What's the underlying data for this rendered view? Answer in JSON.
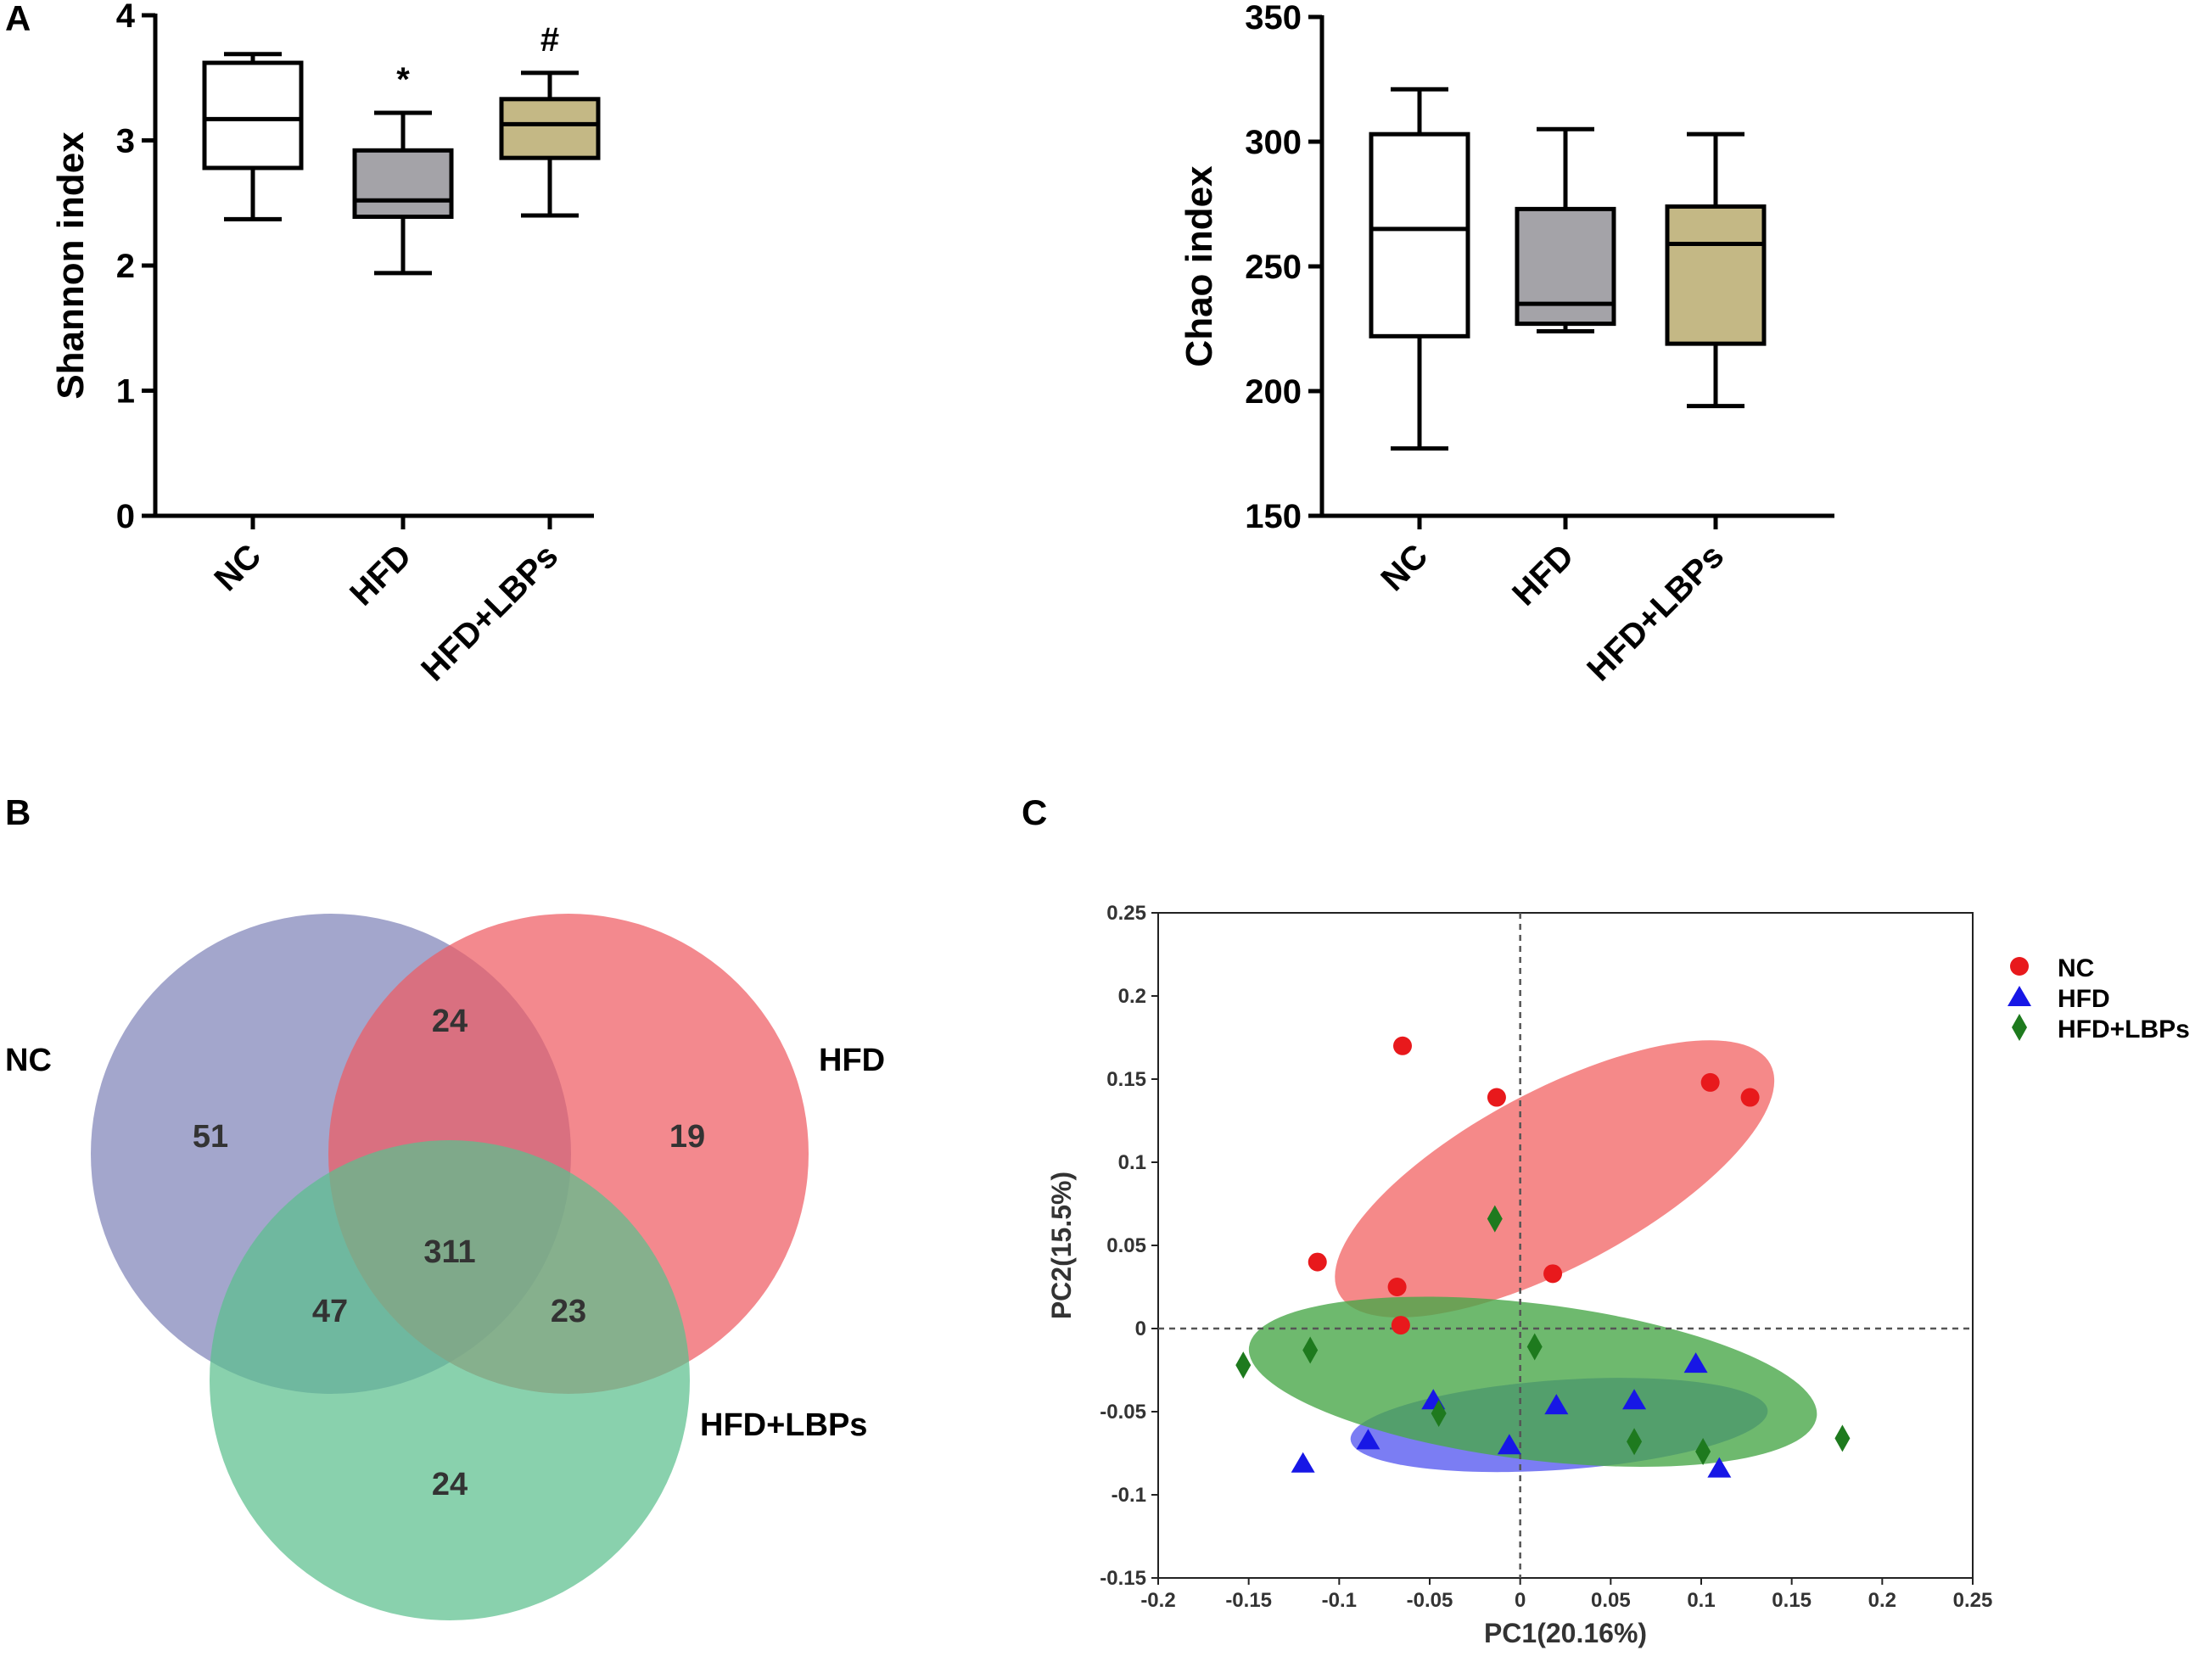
{
  "panels": {
    "a": "A",
    "b": "B",
    "c": "C"
  },
  "chart_data": [
    {
      "type": "box",
      "id": "shannon",
      "ylabel": "Shannon index",
      "ylim": [
        0,
        4
      ],
      "yticks": [
        "0",
        "1",
        "2",
        "3",
        "4"
      ],
      "categories": [
        "NC",
        "HFD",
        "HFD+LBPs"
      ],
      "colors": [
        "#ffffff",
        "#a4a3a8",
        "#c4b885"
      ],
      "boxes": [
        {
          "min": 2.37,
          "q1": 2.78,
          "median": 3.17,
          "q3": 3.62,
          "max": 3.69,
          "sig": ""
        },
        {
          "min": 1.94,
          "q1": 2.39,
          "median": 2.52,
          "q3": 2.92,
          "max": 3.22,
          "sig": "*"
        },
        {
          "min": 2.4,
          "q1": 2.86,
          "median": 3.13,
          "q3": 3.33,
          "max": 3.54,
          "sig": "#"
        }
      ]
    },
    {
      "type": "box",
      "id": "chao",
      "ylabel": "Chao index",
      "ylim": [
        150,
        350
      ],
      "yticks": [
        "150",
        "200",
        "250",
        "300",
        "350"
      ],
      "categories": [
        "NC",
        "HFD",
        "HFD+LBPs"
      ],
      "colors": [
        "#ffffff",
        "#a4a3a8",
        "#c4b885"
      ],
      "boxes": [
        {
          "min": 177,
          "q1": 222,
          "median": 265,
          "q3": 303,
          "max": 321,
          "sig": ""
        },
        {
          "min": 224,
          "q1": 227,
          "median": 235,
          "q3": 273,
          "max": 305,
          "sig": ""
        },
        {
          "min": 194,
          "q1": 219,
          "median": 259,
          "q3": 274,
          "max": 303,
          "sig": ""
        }
      ]
    },
    {
      "type": "venn",
      "id": "venn",
      "sets": [
        {
          "name": "NC",
          "color": "#7f83b8"
        },
        {
          "name": "HFD",
          "color": "#ef5b62"
        },
        {
          "name": "HFD+LBPs",
          "color": "#5cbf8e"
        }
      ],
      "counts": {
        "nc_only": "51",
        "hfd_only": "19",
        "lbp_only": "24",
        "nc_hfd": "24",
        "nc_lbp": "47",
        "hfd_lbp": "23",
        "all": "311"
      }
    },
    {
      "type": "scatter",
      "id": "pca",
      "xlabel": "PC1(20.16%)",
      "ylabel": "PC2(15.5%)",
      "xlim": [
        -0.2,
        0.25
      ],
      "ylim": [
        -0.15,
        0.25
      ],
      "xticks": [
        "-0.2",
        "-0.15",
        "-0.1",
        "-0.05",
        "0",
        "0.05",
        "0.1",
        "0.15",
        "0.2",
        "0.25"
      ],
      "yticks": [
        "-0.15",
        "-0.1",
        "-0.05",
        "0",
        "0.05",
        "0.1",
        "0.15",
        "0.2",
        "0.25"
      ],
      "series": [
        {
          "name": "NC",
          "color": "#e8191c",
          "marker": "circle",
          "points": [
            [
              -0.065,
              0.17
            ],
            [
              -0.013,
              0.139
            ],
            [
              0.105,
              0.148
            ],
            [
              0.127,
              0.139
            ],
            [
              -0.112,
              0.04
            ],
            [
              -0.068,
              0.025
            ],
            [
              0.018,
              0.033
            ],
            [
              -0.066,
              0.002
            ]
          ],
          "ellipse": {
            "cx": 0.019,
            "cy": 0.09,
            "rx": 0.135,
            "ry": 0.053,
            "angle_deg": 28,
            "fill": "#f26b6b"
          }
        },
        {
          "name": "HFD",
          "color": "#1717e6",
          "marker": "triangle",
          "points": [
            [
              -0.12,
              -0.081
            ],
            [
              -0.084,
              -0.067
            ],
            [
              -0.048,
              -0.043
            ],
            [
              -0.006,
              -0.07
            ],
            [
              0.02,
              -0.046
            ],
            [
              0.063,
              -0.043
            ],
            [
              0.097,
              -0.021
            ],
            [
              0.11,
              -0.084
            ]
          ],
          "ellipse": {
            "cx": 0.0215,
            "cy": -0.058,
            "rx": 0.1155,
            "ry": 0.027,
            "angle_deg": 4,
            "fill": "#5a5cf0"
          }
        },
        {
          "name": "HFD+LBPs",
          "color": "#1e7a1e",
          "marker": "diamond",
          "points": [
            [
              -0.153,
              -0.022
            ],
            [
              -0.116,
              -0.013
            ],
            [
              -0.045,
              -0.051
            ],
            [
              -0.014,
              0.066
            ],
            [
              0.008,
              -0.011
            ],
            [
              0.063,
              -0.068
            ],
            [
              0.101,
              -0.074
            ],
            [
              0.178,
              -0.066
            ]
          ],
          "ellipse": {
            "cx": 0.007,
            "cy": -0.032,
            "rx": 0.158,
            "ry": 0.047,
            "angle_deg": -7,
            "fill": "#4aa84a"
          }
        }
      ]
    }
  ]
}
